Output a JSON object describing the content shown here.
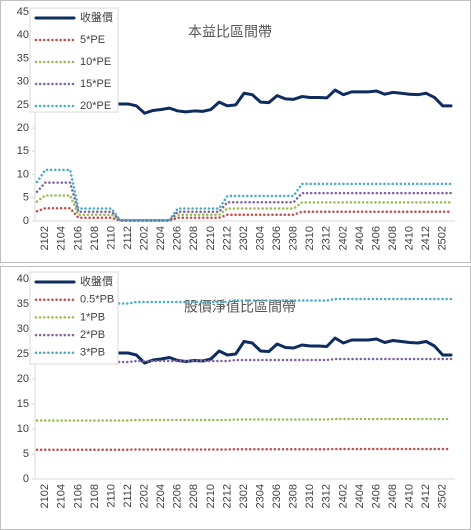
{
  "chart_data": [
    {
      "type": "line",
      "title": "本益比區間帶",
      "categories": [
        null,
        "2102",
        null,
        "2104",
        null,
        "2106",
        null,
        "2108",
        null,
        "2110",
        null,
        "2112",
        null,
        "2202",
        null,
        "2204",
        null,
        "2206",
        null,
        "2208",
        null,
        "2210",
        null,
        "2212",
        null,
        "2302",
        null,
        "2304",
        null,
        "2306",
        null,
        "2308",
        null,
        "2310",
        null,
        "2312",
        null,
        "2402",
        null,
        "2404",
        null,
        "2406",
        null,
        "2408",
        null,
        "2410",
        null,
        "2412",
        null,
        "2502",
        null
      ],
      "ylim": [
        0,
        45
      ],
      "yticks": [
        0,
        5,
        10,
        15,
        20,
        25,
        30,
        35,
        40,
        45
      ],
      "series": [
        {
          "name": "收盤價",
          "color": "#0e2c5e",
          "values": [
            24,
            24.5,
            25,
            25.5,
            25,
            24.8,
            24.6,
            24.5,
            25,
            25.3,
            25.2,
            25.2,
            24.8,
            23.2,
            23.8,
            24,
            24.3,
            23.7,
            23.5,
            23.7,
            23.6,
            24,
            25.6,
            24.8,
            25,
            27.5,
            27.2,
            25.6,
            25.5,
            27,
            26.3,
            26.2,
            26.8,
            26.6,
            26.6,
            26.5,
            28.2,
            27.2,
            27.8,
            27.8,
            27.8,
            28,
            27.3,
            27.7,
            27.5,
            27.3,
            27.2,
            27.5,
            26.6,
            24.8,
            24.8
          ]
        },
        {
          "name": "5*PE",
          "color": "#c0504d",
          "values": [
            2.1,
            2.75,
            2.75,
            2.75,
            2.75,
            0.7,
            0.7,
            0.7,
            0.7,
            0.7,
            0.05,
            0.05,
            0.05,
            0.05,
            0.05,
            0.05,
            0.05,
            0.7,
            0.7,
            0.7,
            0.7,
            0.7,
            0.7,
            1.35,
            1.35,
            1.35,
            1.35,
            1.35,
            1.35,
            1.35,
            1.35,
            1.35,
            2,
            2,
            2,
            2,
            2,
            2,
            2,
            2,
            2,
            2,
            2,
            2,
            2,
            2,
            2,
            2,
            2,
            2,
            2
          ]
        },
        {
          "name": "10*PE",
          "color": "#9bbb59",
          "values": [
            4.2,
            5.5,
            5.5,
            5.5,
            5.5,
            1.35,
            1.35,
            1.35,
            1.35,
            1.35,
            0.1,
            0.1,
            0.1,
            0.1,
            0.1,
            0.1,
            0.1,
            1.35,
            1.35,
            1.35,
            1.35,
            1.35,
            1.35,
            2.7,
            2.7,
            2.7,
            2.7,
            2.7,
            2.7,
            2.7,
            2.7,
            2.7,
            4,
            4,
            4,
            4,
            4,
            4,
            4,
            4,
            4,
            4,
            4,
            4,
            4,
            4,
            4,
            4,
            4,
            4,
            4
          ]
        },
        {
          "name": "15*PE",
          "color": "#8064a2",
          "values": [
            6.3,
            8.25,
            8.25,
            8.25,
            8.25,
            2,
            2,
            2,
            2,
            2,
            0.15,
            0.15,
            0.15,
            0.15,
            0.15,
            0.15,
            0.15,
            2,
            2,
            2,
            2,
            2,
            2,
            4.05,
            4.05,
            4.05,
            4.05,
            4.05,
            4.05,
            4.05,
            4.05,
            4.05,
            6,
            6,
            6,
            6,
            6,
            6,
            6,
            6,
            6,
            6,
            6,
            6,
            6,
            6,
            6,
            6,
            6,
            6,
            6
          ]
        },
        {
          "name": "20*PE",
          "color": "#4bacc6",
          "values": [
            8.4,
            11,
            11,
            11,
            11,
            2.7,
            2.7,
            2.7,
            2.7,
            2.7,
            0.2,
            0.2,
            0.2,
            0.2,
            0.2,
            0.2,
            0.2,
            2.7,
            2.7,
            2.7,
            2.7,
            2.7,
            2.7,
            5.4,
            5.4,
            5.4,
            5.4,
            5.4,
            5.4,
            5.4,
            5.4,
            5.4,
            8,
            8,
            8,
            8,
            8,
            8,
            8,
            8,
            8,
            8,
            8,
            8,
            8,
            8,
            8,
            8,
            8,
            8,
            8
          ]
        }
      ]
    },
    {
      "type": "line",
      "title": "股價淨值比區間帶",
      "categories": [
        null,
        "2102",
        null,
        "2104",
        null,
        "2106",
        null,
        "2108",
        null,
        "2110",
        null,
        "2112",
        null,
        "2202",
        null,
        "2204",
        null,
        "2206",
        null,
        "2208",
        null,
        "2210",
        null,
        "2212",
        null,
        "2302",
        null,
        "2304",
        null,
        "2306",
        null,
        "2308",
        null,
        "2310",
        null,
        "2312",
        null,
        "2402",
        null,
        "2404",
        null,
        "2406",
        null,
        "2408",
        null,
        "2410",
        null,
        "2412",
        null,
        "2502",
        null
      ],
      "ylim": [
        0,
        40
      ],
      "yticks": [
        0,
        5,
        10,
        15,
        20,
        25,
        30,
        35,
        40
      ],
      "series": [
        {
          "name": "收盤價",
          "color": "#0e2c5e",
          "values": [
            24,
            24.5,
            25,
            25.5,
            25,
            24.8,
            24.6,
            24.5,
            25,
            25.3,
            25.2,
            25.2,
            24.8,
            23.2,
            23.8,
            24,
            24.3,
            23.7,
            23.5,
            23.7,
            23.6,
            24,
            25.6,
            24.8,
            25,
            27.5,
            27.2,
            25.6,
            25.5,
            27,
            26.3,
            26.2,
            26.8,
            26.6,
            26.6,
            26.5,
            28.2,
            27.2,
            27.8,
            27.8,
            27.8,
            28,
            27.3,
            27.7,
            27.5,
            27.3,
            27.2,
            27.5,
            26.6,
            24.8,
            24.8
          ]
        },
        {
          "name": "0.5*PB",
          "color": "#c0504d",
          "values": [
            5.85,
            5.85,
            5.85,
            5.85,
            5.85,
            5.85,
            5.85,
            5.85,
            5.85,
            5.85,
            5.85,
            5.85,
            5.9,
            5.9,
            5.9,
            5.9,
            5.9,
            5.9,
            5.9,
            5.9,
            5.9,
            5.9,
            5.9,
            5.9,
            5.95,
            5.95,
            5.95,
            5.95,
            5.95,
            5.95,
            5.95,
            5.95,
            5.95,
            5.95,
            5.95,
            5.95,
            6,
            6,
            6,
            6,
            6,
            6,
            6,
            6,
            6,
            6,
            6,
            6,
            6,
            6,
            6
          ]
        },
        {
          "name": "1*PB",
          "color": "#9bbb59",
          "values": [
            11.7,
            11.7,
            11.7,
            11.7,
            11.7,
            11.7,
            11.7,
            11.7,
            11.7,
            11.7,
            11.7,
            11.7,
            11.8,
            11.8,
            11.8,
            11.8,
            11.8,
            11.8,
            11.8,
            11.8,
            11.8,
            11.8,
            11.8,
            11.8,
            11.9,
            11.9,
            11.9,
            11.9,
            11.9,
            11.9,
            11.9,
            11.9,
            11.9,
            11.9,
            11.9,
            11.9,
            12,
            12,
            12,
            12,
            12,
            12,
            12,
            12,
            12,
            12,
            12,
            12,
            12,
            12,
            12
          ]
        },
        {
          "name": "2*PB",
          "color": "#8064a2",
          "values": [
            23.4,
            23.4,
            23.4,
            23.4,
            23.4,
            23.4,
            23.4,
            23.4,
            23.4,
            23.4,
            23.4,
            23.4,
            23.6,
            23.6,
            23.6,
            23.6,
            23.6,
            23.6,
            23.6,
            23.6,
            23.6,
            23.6,
            23.6,
            23.6,
            23.8,
            23.8,
            23.8,
            23.8,
            23.8,
            23.8,
            23.8,
            23.8,
            23.8,
            23.8,
            23.8,
            23.8,
            24,
            24,
            24,
            24,
            24,
            24,
            24,
            24,
            24,
            24,
            24,
            24,
            24,
            24,
            24
          ]
        },
        {
          "name": "3*PB",
          "color": "#4bacc6",
          "values": [
            35.1,
            35.1,
            35.1,
            35.1,
            35.1,
            35.1,
            35.1,
            35.1,
            35.1,
            35.1,
            35.1,
            35.1,
            35.4,
            35.4,
            35.4,
            35.4,
            35.4,
            35.4,
            35.4,
            35.4,
            35.4,
            35.4,
            35.4,
            35.4,
            35.7,
            35.7,
            35.7,
            35.7,
            35.7,
            35.7,
            35.7,
            35.7,
            35.7,
            35.7,
            35.7,
            35.7,
            36,
            36,
            36,
            36,
            36,
            36,
            36,
            36,
            36,
            36,
            36,
            36,
            36,
            36,
            36
          ]
        }
      ]
    }
  ]
}
